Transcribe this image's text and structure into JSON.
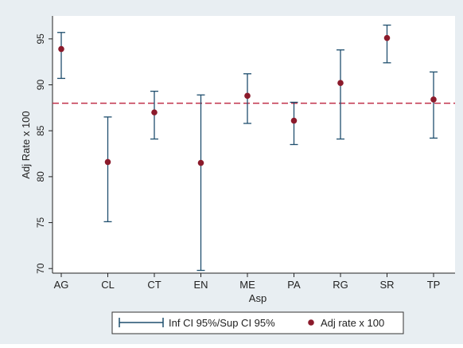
{
  "chart_data": {
    "type": "scatter",
    "title": "",
    "xlabel": "Asp",
    "ylabel": "Adj Rate x 100",
    "ylim": [
      69.5,
      97.5
    ],
    "yticks": [
      70,
      75,
      80,
      85,
      90,
      95
    ],
    "grid": false,
    "legend_position": "bottom",
    "categories": [
      "AG",
      "CL",
      "CT",
      "EN",
      "ME",
      "PA",
      "RG",
      "SR",
      "TP"
    ],
    "series": [
      {
        "name": "Inf CI 95%/Sup CI 95%",
        "kind": "errorbar",
        "color": "#1f4f6e",
        "low": [
          90.7,
          75.1,
          84.1,
          69.8,
          85.8,
          83.5,
          84.1,
          92.4,
          84.2
        ],
        "high": [
          95.7,
          86.5,
          89.3,
          88.9,
          91.2,
          88.1,
          93.8,
          96.5,
          91.4
        ]
      },
      {
        "name": "Adj rate x 100",
        "kind": "point",
        "color": "#8b1a2b",
        "values": [
          93.9,
          81.6,
          87.0,
          81.5,
          88.8,
          86.1,
          90.2,
          95.1,
          88.4
        ]
      }
    ],
    "reference_line": {
      "y": 88.0,
      "style": "dashed",
      "color": "#c0304a"
    }
  }
}
